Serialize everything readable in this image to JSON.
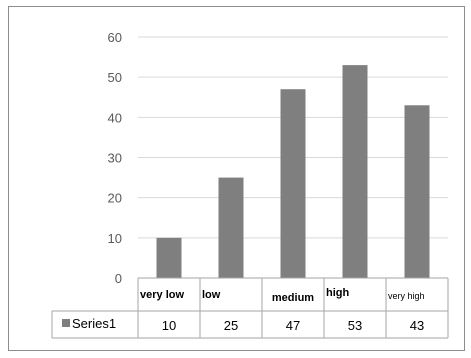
{
  "chart_data": {
    "type": "bar",
    "categories": [
      "very low",
      "low",
      "medium",
      "high",
      "very high"
    ],
    "series": [
      {
        "name": "Series1",
        "values": [
          10,
          25,
          47,
          53,
          43
        ],
        "color": "#7f7f7f"
      }
    ],
    "ylim": [
      0,
      60
    ],
    "yticks": [
      0,
      10,
      20,
      30,
      40,
      50,
      60
    ],
    "grid": true,
    "legend": "data-table",
    "title": "",
    "xlabel": "",
    "ylabel": ""
  },
  "colors": {
    "bar": "#7f7f7f",
    "grid": "#d9d9d9",
    "table_border": "#a6a6a6"
  }
}
